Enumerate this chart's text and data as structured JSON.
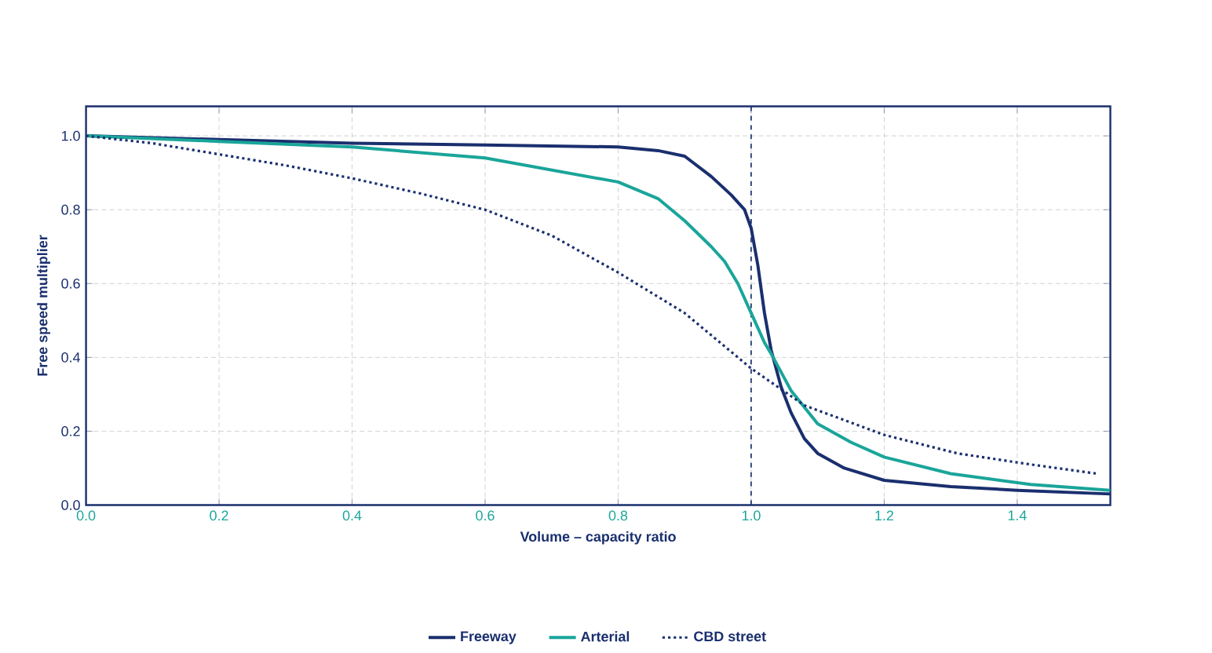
{
  "chart_data": {
    "type": "line",
    "xlabel": "Volume – capacity ratio",
    "ylabel": "Free speed multiplier",
    "xlim": [
      0,
      1.54
    ],
    "ylim": [
      0,
      1.08
    ],
    "xticks": [
      {
        "value": 0,
        "label": "0.0"
      },
      {
        "value": 0.2,
        "label": "0.2"
      },
      {
        "value": 0.4,
        "label": "0.4"
      },
      {
        "value": 0.6,
        "label": "0.6"
      },
      {
        "value": 0.8,
        "label": "0.8"
      },
      {
        "value": 1,
        "label": "1.0"
      },
      {
        "value": 1.2,
        "label": "1.2"
      },
      {
        "value": 1.4,
        "label": "1.4"
      }
    ],
    "yticks": [
      {
        "value": 0,
        "label": "0.0"
      },
      {
        "value": 0.2,
        "label": "0.2"
      },
      {
        "value": 0.4,
        "label": "0.4"
      },
      {
        "value": 0.6,
        "label": "0.6"
      },
      {
        "value": 0.8,
        "label": "0.8"
      },
      {
        "value": 1,
        "label": "1.0"
      }
    ],
    "grid": true,
    "legend": "bottom",
    "marker": "none",
    "ref_lines": [
      {
        "axis": "x",
        "value": 1,
        "color": "#1a2f6e",
        "line_style": "dashed"
      }
    ],
    "series": [
      {
        "name": "Freeway",
        "color": "#1a2f6e",
        "line_style": "solid",
        "x": [
          0,
          0.2,
          0.4,
          0.6,
          0.8,
          0.86,
          0.9,
          0.94,
          0.97,
          0.99,
          1.0,
          1.01,
          1.02,
          1.03,
          1.045,
          1.06,
          1.08,
          1.1,
          1.14,
          1.2,
          1.3,
          1.4,
          1.54
        ],
        "values": [
          1.0,
          0.99,
          0.98,
          0.975,
          0.97,
          0.96,
          0.945,
          0.89,
          0.84,
          0.8,
          0.75,
          0.65,
          0.52,
          0.42,
          0.32,
          0.25,
          0.18,
          0.14,
          0.1,
          0.067,
          0.05,
          0.04,
          0.03
        ]
      },
      {
        "name": "Arterial",
        "color": "#1aa59a",
        "line_style": "solid",
        "x": [
          0,
          0.2,
          0.4,
          0.6,
          0.8,
          0.86,
          0.9,
          0.94,
          0.96,
          0.98,
          1.0,
          1.02,
          1.03,
          1.06,
          1.1,
          1.15,
          1.2,
          1.3,
          1.42,
          1.54
        ],
        "values": [
          1.0,
          0.985,
          0.97,
          0.94,
          0.875,
          0.83,
          0.77,
          0.7,
          0.66,
          0.6,
          0.52,
          0.44,
          0.41,
          0.31,
          0.22,
          0.17,
          0.13,
          0.085,
          0.056,
          0.04
        ]
      },
      {
        "name": "CBD street",
        "color": "#1a2f6e",
        "line_style": "dotted",
        "x": [
          0,
          0.1,
          0.2,
          0.3,
          0.4,
          0.5,
          0.6,
          0.7,
          0.8,
          0.9,
          1.0,
          1.08,
          1.2,
          1.31,
          1.42,
          1.52
        ],
        "values": [
          1.0,
          0.98,
          0.95,
          0.92,
          0.885,
          0.845,
          0.8,
          0.73,
          0.63,
          0.52,
          0.37,
          0.27,
          0.19,
          0.14,
          0.11,
          0.085
        ]
      }
    ]
  }
}
